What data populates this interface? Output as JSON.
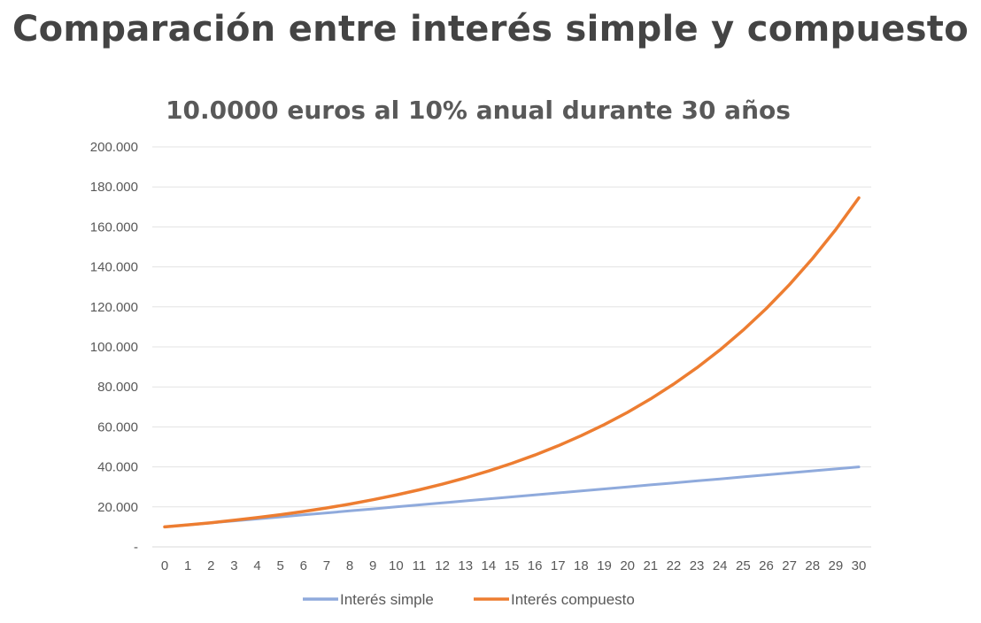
{
  "page_title": "Comparación entre interés simple y compuesto",
  "chart_data": {
    "type": "line",
    "title": "10.0000 euros  al 10% anual durante 30 años",
    "xlabel": "",
    "ylabel": "",
    "categories": [
      "0",
      "1",
      "2",
      "3",
      "4",
      "5",
      "6",
      "7",
      "8",
      "9",
      "10",
      "11",
      "12",
      "13",
      "14",
      "15",
      "16",
      "17",
      "18",
      "19",
      "20",
      "21",
      "22",
      "23",
      "24",
      "25",
      "26",
      "27",
      "28",
      "29",
      "30"
    ],
    "ylim": [
      0,
      200000
    ],
    "y_ticks": [
      0,
      20000,
      40000,
      60000,
      80000,
      100000,
      120000,
      140000,
      160000,
      180000,
      200000
    ],
    "y_tick_labels": [
      "-",
      "20.000",
      "40.000",
      "60.000",
      "80.000",
      "100.000",
      "120.000",
      "140.000",
      "160.000",
      "180.000",
      "200.000"
    ],
    "grid": true,
    "legend_position": "bottom",
    "series": [
      {
        "name": "Interés simple",
        "color": "#8faadc",
        "values": [
          10000,
          11000,
          12000,
          13000,
          14000,
          15000,
          16000,
          17000,
          18000,
          19000,
          20000,
          21000,
          22000,
          23000,
          24000,
          25000,
          26000,
          27000,
          28000,
          29000,
          30000,
          31000,
          32000,
          33000,
          34000,
          35000,
          36000,
          37000,
          38000,
          39000,
          40000
        ]
      },
      {
        "name": "Interés compuesto",
        "color": "#ed7d31",
        "values": [
          10000,
          11000,
          12100,
          13310,
          14641,
          16105,
          17716,
          19487,
          21436,
          23579,
          25937,
          28531,
          31384,
          34523,
          37975,
          41772,
          45950,
          50545,
          55599,
          61159,
          67275,
          74002,
          81403,
          89543,
          98497,
          108347,
          119182,
          131100,
          144210,
          158631,
          174494
        ]
      }
    ]
  }
}
